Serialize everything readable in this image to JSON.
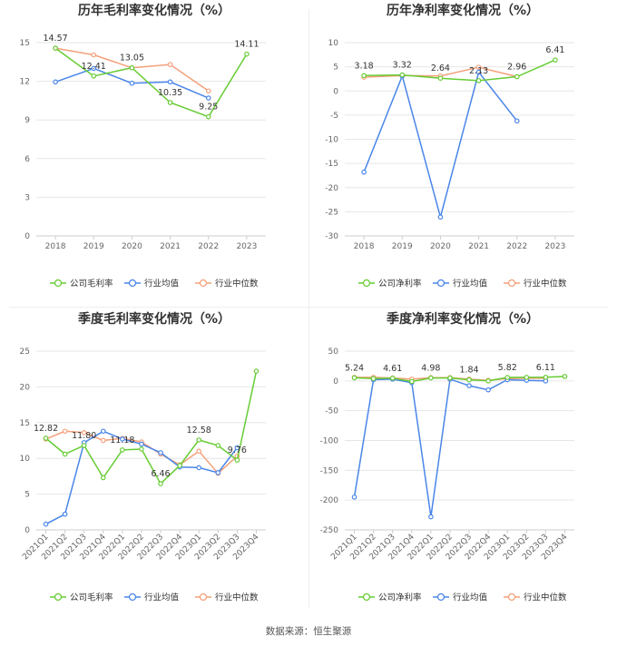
{
  "source_label": "数据来源：恒生聚源",
  "colors": {
    "company": "#66cc33",
    "industry_avg": "#4a86e8",
    "industry_median": "#f4a07a"
  },
  "chart_data": [
    {
      "type": "line",
      "title": "历年毛利率变化情况（%）",
      "categories": [
        "2018",
        "2019",
        "2020",
        "2021",
        "2022",
        "2023"
      ],
      "ylim": [
        0,
        15
      ],
      "yticks": [
        0,
        3,
        6,
        9,
        12,
        15
      ],
      "xrotate": false,
      "series": [
        {
          "name": "公司毛利率",
          "color": "#66cc33",
          "values": [
            14.57,
            12.41,
            13.05,
            10.35,
            9.25,
            14.11
          ]
        },
        {
          "name": "行业均值",
          "color": "#4a86e8",
          "values": [
            11.95,
            13.0,
            11.85,
            11.95,
            10.7,
            null
          ]
        },
        {
          "name": "行业中位数",
          "color": "#f4a07a",
          "values": [
            14.57,
            14.05,
            13.05,
            13.3,
            11.25,
            null
          ]
        }
      ],
      "labels": [
        {
          "i": 0,
          "text": "14.57",
          "series": 0
        },
        {
          "i": 1,
          "text": "12.41",
          "series": 0
        },
        {
          "i": 2,
          "text": "13.05",
          "series": 0
        },
        {
          "i": 3,
          "text": "10.35",
          "series": 0
        },
        {
          "i": 4,
          "text": "9.25",
          "series": 0
        },
        {
          "i": 5,
          "text": "14.11",
          "series": 0
        }
      ]
    },
    {
      "type": "line",
      "title": "历年净利率变化情况（%）",
      "categories": [
        "2018",
        "2019",
        "2020",
        "2021",
        "2022",
        "2023"
      ],
      "ylim": [
        -30,
        10
      ],
      "yticks": [
        -30,
        -25,
        -20,
        -15,
        -10,
        -5,
        0,
        5,
        10
      ],
      "xrotate": false,
      "series": [
        {
          "name": "公司净利率",
          "color": "#66cc33",
          "values": [
            3.18,
            3.32,
            2.64,
            2.13,
            2.96,
            6.41
          ]
        },
        {
          "name": "行业均值",
          "color": "#4a86e8",
          "values": [
            -16.8,
            3.1,
            -26.1,
            3.9,
            -6.2,
            null
          ]
        },
        {
          "name": "行业中位数",
          "color": "#f4a07a",
          "values": [
            2.85,
            3.2,
            3.1,
            4.9,
            2.96,
            null
          ]
        }
      ],
      "labels": [
        {
          "i": 0,
          "text": "3.18",
          "series": 0
        },
        {
          "i": 1,
          "text": "3.32",
          "series": 0
        },
        {
          "i": 2,
          "text": "2.64",
          "series": 0
        },
        {
          "i": 3,
          "text": "2.13",
          "series": 0
        },
        {
          "i": 4,
          "text": "2.96",
          "series": 0
        },
        {
          "i": 5,
          "text": "6.41",
          "series": 0
        }
      ]
    },
    {
      "type": "line",
      "title": "季度毛利率变化情况（%）",
      "categories": [
        "2021Q1",
        "2021Q2",
        "2021Q3",
        "2021Q4",
        "2022Q1",
        "2022Q2",
        "2022Q3",
        "2022Q4",
        "2023Q1",
        "2023Q2",
        "2023Q3",
        "2023Q4"
      ],
      "ylim": [
        0,
        25
      ],
      "yticks": [
        0,
        5,
        10,
        15,
        20,
        25
      ],
      "xrotate": true,
      "series": [
        {
          "name": "公司毛利率",
          "color": "#66cc33",
          "values": [
            12.82,
            10.6,
            11.8,
            7.3,
            11.18,
            11.3,
            6.46,
            9.0,
            12.58,
            11.8,
            9.76,
            22.2
          ]
        },
        {
          "name": "行业均值",
          "color": "#4a86e8",
          "values": [
            0.8,
            2.2,
            12.2,
            13.8,
            12.7,
            12.0,
            10.8,
            8.8,
            8.7,
            8.0,
            11.5,
            null
          ]
        },
        {
          "name": "行业中位数",
          "color": "#f4a07a",
          "values": [
            12.7,
            13.8,
            13.6,
            12.5,
            12.8,
            12.3,
            10.6,
            9.1,
            11.0,
            7.9,
            10.3,
            null
          ]
        }
      ],
      "labels": [
        {
          "i": 0,
          "text": "12.82",
          "series": 0
        },
        {
          "i": 2,
          "text": "11.80",
          "series": 0
        },
        {
          "i": 4,
          "text": "11.18",
          "series": 0
        },
        {
          "i": 6,
          "text": "6.46",
          "series": 0
        },
        {
          "i": 8,
          "text": "12.58",
          "series": 0
        },
        {
          "i": 10,
          "text": "9.76",
          "series": 0
        }
      ]
    },
    {
      "type": "line",
      "title": "季度净利率变化情况（%）",
      "categories": [
        "2021Q1",
        "2021Q2",
        "2021Q3",
        "2021Q4",
        "2022Q1",
        "2022Q2",
        "2022Q3",
        "2022Q4",
        "2023Q1",
        "2023Q2",
        "2023Q3",
        "2023Q4"
      ],
      "ylim": [
        -250,
        50
      ],
      "yticks": [
        -250,
        -200,
        -150,
        -100,
        -50,
        0,
        50
      ],
      "xrotate": true,
      "series": [
        {
          "name": "公司净利率",
          "color": "#66cc33",
          "values": [
            5.24,
            4.0,
            4.61,
            -1.0,
            4.98,
            5.0,
            1.84,
            0.0,
            5.82,
            6.0,
            6.11,
            7.5
          ]
        },
        {
          "name": "行业均值",
          "color": "#4a86e8",
          "values": [
            -195.0,
            2.0,
            3.0,
            -3.0,
            -228.0,
            3.0,
            -8.0,
            -15.0,
            2.0,
            1.0,
            0.0,
            null
          ]
        },
        {
          "name": "行业中位数",
          "color": "#f4a07a",
          "values": [
            6.0,
            6.0,
            5.0,
            3.0,
            5.5,
            5.5,
            3.0,
            1.0,
            4.0,
            4.5,
            4.5,
            null
          ]
        }
      ],
      "labels": [
        {
          "i": 0,
          "text": "5.24",
          "series": 0
        },
        {
          "i": 2,
          "text": "4.61",
          "series": 0
        },
        {
          "i": 4,
          "text": "4.98",
          "series": 0
        },
        {
          "i": 6,
          "text": "1.84",
          "series": 0
        },
        {
          "i": 8,
          "text": "5.82",
          "series": 0
        },
        {
          "i": 10,
          "text": "6.11",
          "series": 0
        }
      ]
    }
  ]
}
